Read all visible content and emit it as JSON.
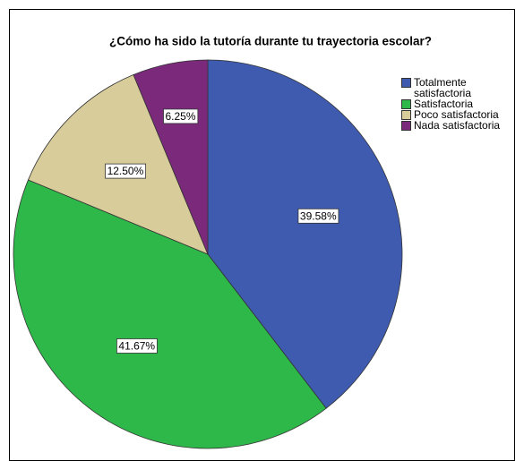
{
  "chart_data": {
    "type": "pie",
    "title": "¿Cómo ha sido la tutoría durante tu trayectoria escolar?",
    "categories": [
      "Totalmente satisfactoria",
      "Satisfactoria",
      "Poco satisfactoria",
      "Nada satisfactoria"
    ],
    "values": [
      39.58,
      41.67,
      12.5,
      6.25
    ],
    "value_labels": [
      "39.58%",
      "41.67%",
      "12.50%",
      "6.25%"
    ],
    "colors": [
      "#3f5bb0",
      "#2fb84a",
      "#d8cc9a",
      "#7b2a7b"
    ]
  }
}
